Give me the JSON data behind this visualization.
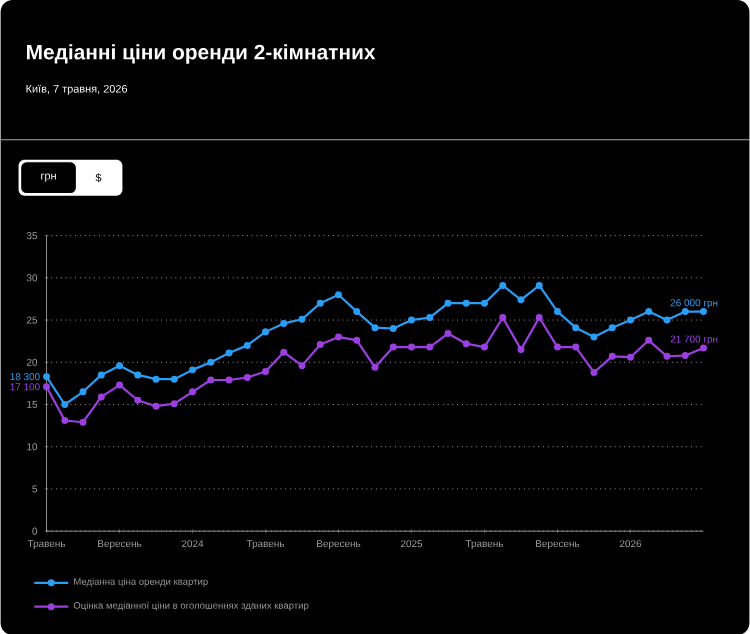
{
  "chart_data": {
    "type": "line",
    "title": "Медіанні ціни оренди 2-кімнатних",
    "subtitle": "Київ, 7 травня, 2026",
    "x": [
      "2023-05",
      "2023-06",
      "2023-07",
      "2023-08",
      "2023-09",
      "2023-10",
      "2023-11",
      "2023-12",
      "2024-01",
      "2024-02",
      "2024-03",
      "2024-04",
      "2024-05",
      "2024-06",
      "2024-07",
      "2024-08",
      "2024-09",
      "2024-10",
      "2024-11",
      "2024-12",
      "2025-01",
      "2025-02",
      "2025-03",
      "2025-04",
      "2025-05",
      "2025-06",
      "2025-07",
      "2025-08",
      "2025-09",
      "2025-10",
      "2025-11",
      "2025-12",
      "2026-01",
      "2026-02",
      "2026-03",
      "2026-04",
      "2026-05"
    ],
    "series": [
      {
        "name": "Медіанна ціна оренди квартир",
        "color": "#2a9df4",
        "values": [
          18.3,
          15.0,
          16.5,
          18.5,
          19.6,
          18.5,
          18.0,
          18.0,
          19.1,
          20.0,
          21.1,
          22.0,
          23.6,
          24.6,
          25.1,
          27.0,
          28.0,
          26.0,
          24.1,
          24.0,
          25.0,
          25.3,
          27.0,
          27.0,
          27.0,
          29.1,
          27.4,
          29.1,
          26.0,
          24.1,
          23.0,
          24.1,
          25.0,
          26.0,
          25.0,
          26.0,
          26.0
        ]
      },
      {
        "name": "Оцінка медіанної ціни в оголошеннях зданих квартир",
        "color": "#9b3fe0",
        "values": [
          17.1,
          13.1,
          12.9,
          15.9,
          17.3,
          15.5,
          14.8,
          15.1,
          16.5,
          17.9,
          17.9,
          18.2,
          18.9,
          21.2,
          19.6,
          22.1,
          23.0,
          22.6,
          19.4,
          21.8,
          21.8,
          21.8,
          23.4,
          22.2,
          21.8,
          25.3,
          21.5,
          25.3,
          21.8,
          21.8,
          18.8,
          20.7,
          20.6,
          22.6,
          20.7,
          20.8,
          21.7
        ]
      }
    ],
    "xlim": [
      "2023-05",
      "2026-05"
    ],
    "ylim": [
      0,
      35
    ],
    "xticks": [
      {
        "value": "2023-05",
        "label": "Травень"
      },
      {
        "value": "2023-09",
        "label": "Вересень"
      },
      {
        "value": "2024-01",
        "label": "2024"
      },
      {
        "value": "2024-05",
        "label": "Травень"
      },
      {
        "value": "2024-09",
        "label": "Вересень"
      },
      {
        "value": "2025-01",
        "label": "2025"
      },
      {
        "value": "2025-05",
        "label": "Травень"
      },
      {
        "value": "2025-09",
        "label": "Вересень"
      },
      {
        "value": "2026-01",
        "label": "2026"
      }
    ],
    "yticks": [
      0,
      5,
      10,
      15,
      20,
      25,
      30,
      35
    ],
    "grid": "y",
    "legend": "bottom",
    "marker": "circle",
    "line_style": "solid",
    "annotations": [
      {
        "text": "18 300",
        "x": "2023-05",
        "y": 18.3
      },
      {
        "text": "17 100",
        "x": "2023-05",
        "y": 17.1
      },
      {
        "text": "26 000 грн",
        "x": "2026-05",
        "y": 26.0
      },
      {
        "text": "21 700 грн",
        "x": "2026-05",
        "y": 21.7
      },
      "грн",
      "$"
    ]
  }
}
